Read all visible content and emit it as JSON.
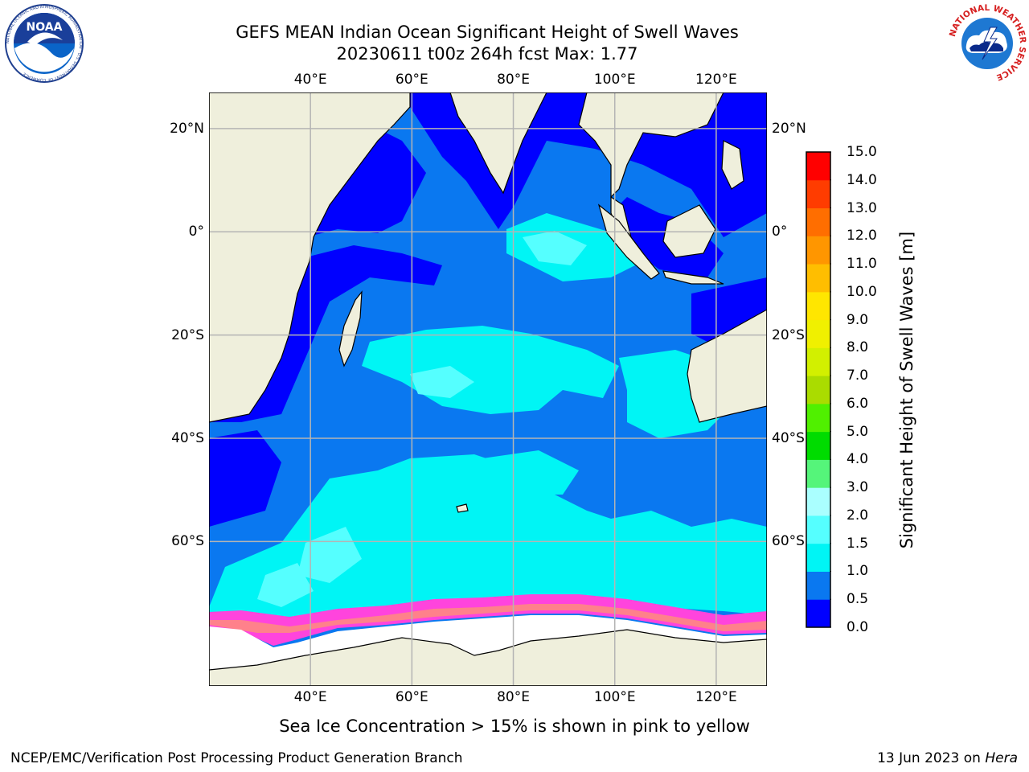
{
  "title_line1": "GEFS MEAN Indian Ocean Significant Height of Swell Waves",
  "title_line2": "20230611 t00z 264h fcst   Max: 1.77",
  "footnote": "Sea Ice Concentration > 15% is shown in pink to yellow",
  "credit_left": "NCEP/EMC/Verification Post Processing Product Generation Branch",
  "credit_right_prefix": "13 Jun 2023 on ",
  "credit_right_machine": "Hera",
  "logos": {
    "left": "noaa-logo",
    "right": "nws-logo",
    "left_text": "NATIONAL OCEANIC AND ATMOSPHERIC ADMINISTRATION · U.S. DEPARTMENT OF COMMERCE",
    "right_text": "NATIONAL WEATHER SERVICE",
    "noaa_wordmark": "NOAA"
  },
  "chart_data": {
    "type": "heatmap",
    "map_extent": {
      "lon": [
        20,
        130
      ],
      "lat": [
        -88,
        27
      ]
    },
    "grid": true,
    "lon_ticks": [
      "40°E",
      "60°E",
      "80°E",
      "100°E",
      "120°E"
    ],
    "lon_values": [
      40,
      60,
      80,
      100,
      120
    ],
    "lat_ticks": [
      "20°N",
      "0°",
      "20°S",
      "40°S",
      "60°S"
    ],
    "lat_values": [
      20,
      0,
      -20,
      -40,
      -60
    ],
    "colorbar": {
      "label": "Significant Height of Swell Waves [m]",
      "ticks": [
        "0.0",
        "0.5",
        "1.0",
        "1.5",
        "2.0",
        "3.0",
        "4.0",
        "5.0",
        "6.0",
        "7.0",
        "8.0",
        "9.0",
        "10.0",
        "11.0",
        "12.0",
        "13.0",
        "14.0",
        "15.0"
      ],
      "colors": [
        "#0000ff",
        "#0a78f0",
        "#00f5f5",
        "#55ffff",
        "#aaffff",
        "#55f57a",
        "#00dc00",
        "#50f000",
        "#aadc00",
        "#d2f000",
        "#f0f000",
        "#ffe600",
        "#ffbe00",
        "#ff9600",
        "#ff6e00",
        "#ff3c00",
        "#ff0000"
      ]
    },
    "colors": {
      "land": "#efefdc",
      "ocean_low": "#0000ff",
      "ocean_mid": "#0a78f0",
      "ocean_high": "#00f5f5",
      "ocean_higher": "#55ffff",
      "sea_ice": "#ff44dd",
      "sea_ice_high": "#ffaa55",
      "ice_shelf": "#ffffff",
      "gridline": "#b4b4b4"
    },
    "max": 1.77
  }
}
